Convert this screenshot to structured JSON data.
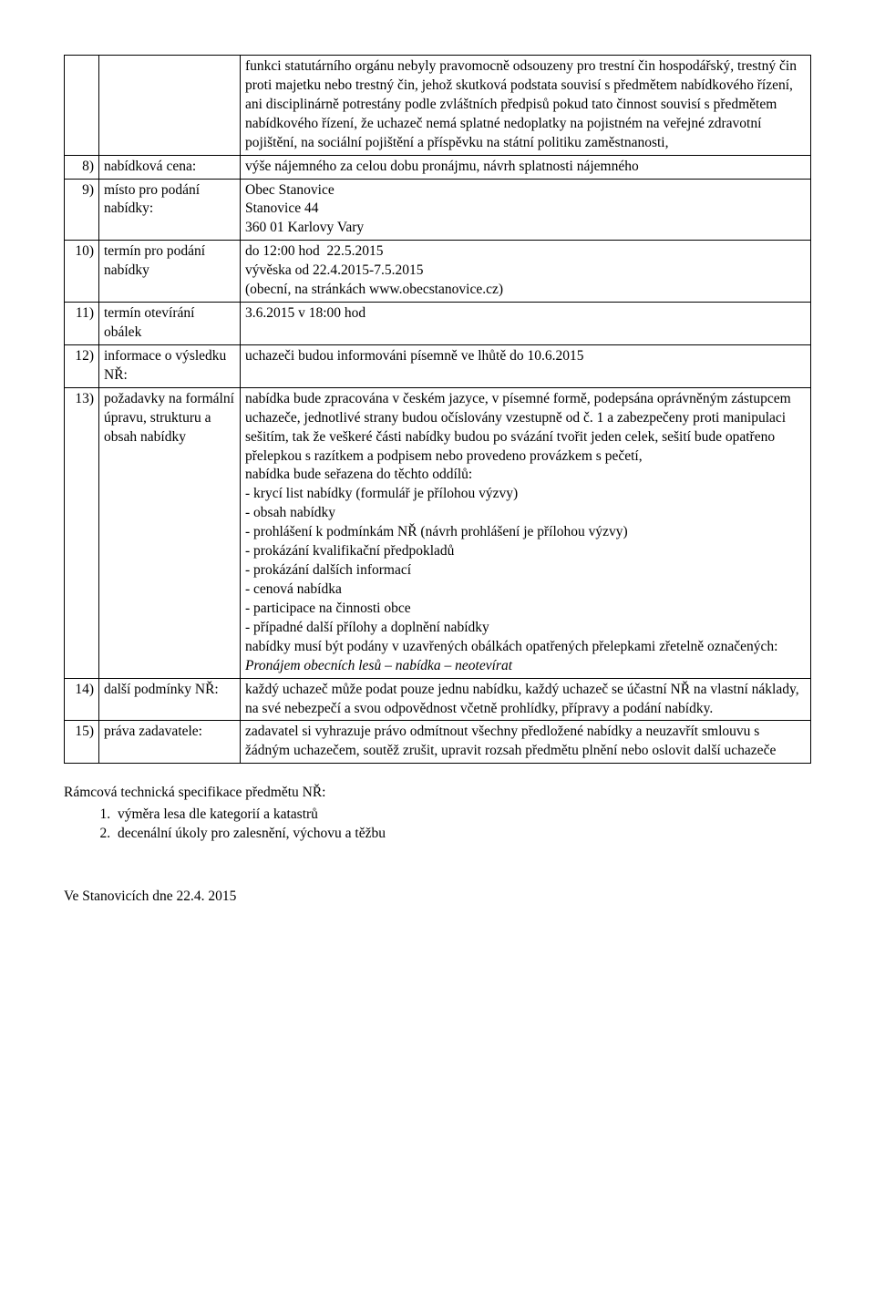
{
  "rows": [
    {
      "num": "",
      "label": "",
      "content": "funkci statutárního orgánu nebyly pravomocně odsouzeny pro trestní čin hospodářský, trestný čin proti majetku nebo trestný čin, jehož skutková podstata souvisí s předmětem nabídkového řízení, ani disciplinárně potrestány podle zvláštních předpisů pokud tato činnost souvisí s předmětem nabídkového řízení, že uchazeč nemá splatné nedoplatky na pojistném na veřejné zdravotní pojištění, na sociální pojištění a příspěvku na státní politiku zaměstnanosti,"
    },
    {
      "num": "8)",
      "label": "nabídková cena:",
      "content": "výše nájemného za celou dobu pronájmu, návrh splatnosti nájemného"
    },
    {
      "num": "9)",
      "label": "místo pro podání nabídky:",
      "content": "Obec Stanovice\nStanovice 44\n360 01 Karlovy Vary"
    },
    {
      "num": "10)",
      "label": "termín pro podání nabídky",
      "content": "do 12:00 hod  22.5.2015\nvývěska od 22.4.2015-7.5.2015\n(obecní, na stránkách www.obecstanovice.cz)"
    },
    {
      "num": "11)",
      "label": "termín otevírání obálek",
      "content": "3.6.2015 v 18:00 hod"
    },
    {
      "num": "12)",
      "label": "informace o výsledku NŘ:",
      "content": "uchazeči budou informováni písemně ve lhůtě do 10.6.2015"
    },
    {
      "num": "13)",
      "label": "požadavky na formální úpravu, strukturu a obsah nabídky",
      "contentHtml": "nabídka bude zpracována v českém jazyce, v písemné formě, podepsána oprávněným zástupcem uchazeče, jednotlivé strany budou očíslovány vzestupně od č. 1 a zabezpečeny proti manipulaci sešitím, tak že veškeré části nabídky budou po svázání tvořit jeden celek, sešití bude opatřeno přelepkou s razítkem a podpisem nebo provedeno provázkem s pečetí,\nnabídka bude seřazena do těchto oddílů:\n- krycí list nabídky (formulář je přílohou výzvy)\n- obsah nabídky\n- prohlášení k podmínkám NŘ (návrh prohlášení je přílohou výzvy)\n- prokázání kvalifikační předpokladů\n- prokázání dalších informací\n- cenová nabídka\n- participace na činnosti obce\n- případné další přílohy a doplnění nabídky\nnabídky musí být podány v uzavřených obálkách opatřených přelepkami zřetelně označených: <span class=\"italic\">Pronájem obecních lesů – nabídka – neotevírat</span>"
    },
    {
      "num": "14)",
      "label": "další podmínky NŘ:",
      "content": "každý uchazeč může podat pouze jednu nabídku, každý uchazeč se účastní NŘ na vlastní náklady, na své nebezpečí a svou odpovědnost včetně prohlídky, přípravy a podání nabídky."
    },
    {
      "num": "15)",
      "label": "práva zadavatele:",
      "content": "zadavatel si vyhrazuje právo odmítnout všechny předložené nabídky a neuzavřít smlouvu s žádným uchazečem, soutěž zrušit, upravit rozsah předmětu plnění nebo oslovit další uchazeče"
    }
  ],
  "below": {
    "heading": "Rámcová technická specifikace předmětu NŘ:",
    "items": [
      "výměra lesa dle kategorií a katastrů",
      "decenální úkoly pro zalesnění, výchovu a těžbu"
    ]
  },
  "footer": "Ve Stanovicích dne 22.4. 2015"
}
